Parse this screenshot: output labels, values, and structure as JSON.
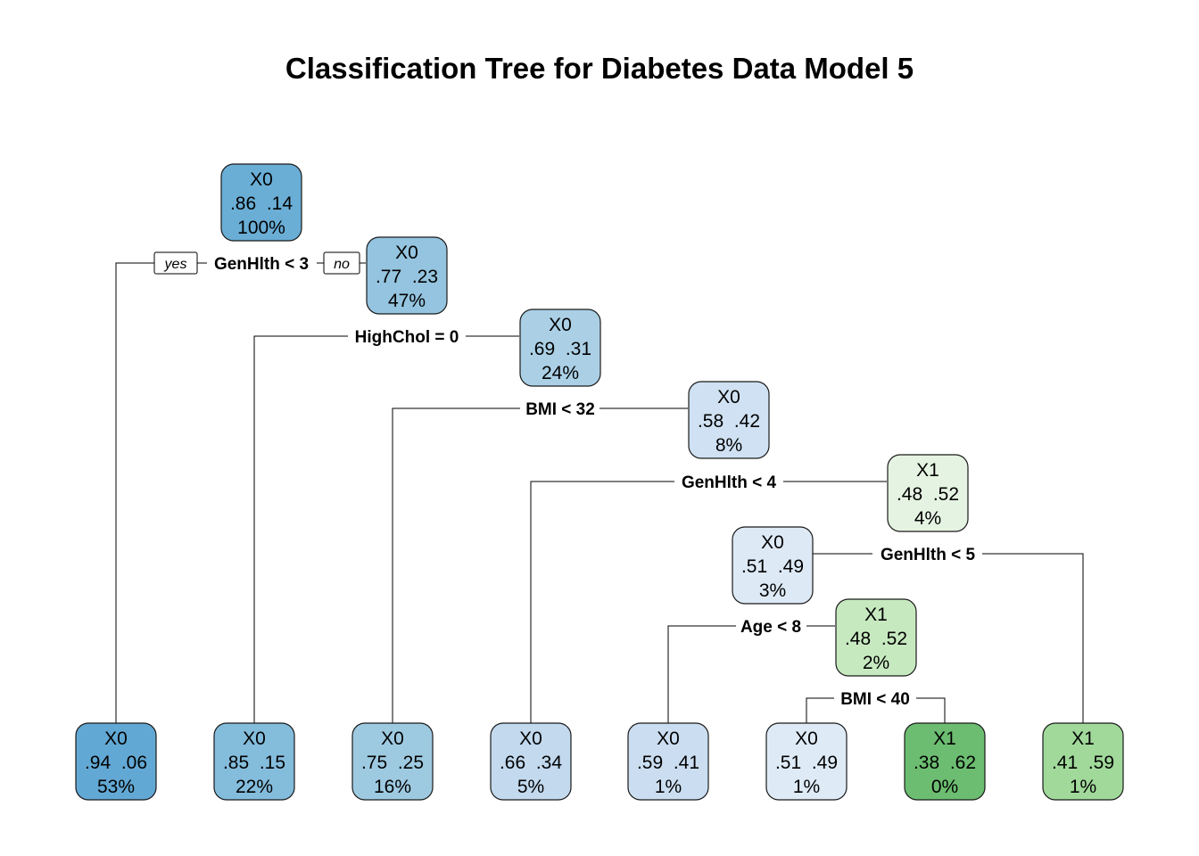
{
  "title": "Classification Tree for Diabetes Data Model 5",
  "colors": {
    "n100": "#6aaed6",
    "n47": "#94c4df",
    "n24": "#abd0e6",
    "n8": "#cfe1f2",
    "n4": "#e5f4e2",
    "n3": "#dde9f5",
    "n2": "#c7e9c0",
    "l53": "#62a8d4",
    "l22": "#84bcdc",
    "l16": "#9ecae1",
    "l5": "#c2d9ee",
    "l1a": "#cbdef1",
    "l1b": "#deebf7",
    "l0": "#6cbd71",
    "l1c": "#a1d99b"
  },
  "edge_labels": {
    "yes": "yes",
    "no": "no"
  },
  "nodes": [
    {
      "id": "n100",
      "cls": "X0",
      "probs": ".86  .14",
      "pct": "100%"
    },
    {
      "id": "n47",
      "cls": "X0",
      "probs": ".77  .23",
      "pct": "47%"
    },
    {
      "id": "n24",
      "cls": "X0",
      "probs": ".69  .31",
      "pct": "24%"
    },
    {
      "id": "n8",
      "cls": "X0",
      "probs": ".58  .42",
      "pct": "8%"
    },
    {
      "id": "n4",
      "cls": "X1",
      "probs": ".48  .52",
      "pct": "4%"
    },
    {
      "id": "n3",
      "cls": "X0",
      "probs": ".51  .49",
      "pct": "3%"
    },
    {
      "id": "n2",
      "cls": "X1",
      "probs": ".48  .52",
      "pct": "2%"
    },
    {
      "id": "l53",
      "cls": "X0",
      "probs": ".94  .06",
      "pct": "53%"
    },
    {
      "id": "l22",
      "cls": "X0",
      "probs": ".85  .15",
      "pct": "22%"
    },
    {
      "id": "l16",
      "cls": "X0",
      "probs": ".75  .25",
      "pct": "16%"
    },
    {
      "id": "l5",
      "cls": "X0",
      "probs": ".66  .34",
      "pct": "5%"
    },
    {
      "id": "l1a",
      "cls": "X0",
      "probs": ".59  .41",
      "pct": "1%"
    },
    {
      "id": "l1b",
      "cls": "X0",
      "probs": ".51  .49",
      "pct": "1%"
    },
    {
      "id": "l0",
      "cls": "X1",
      "probs": ".38  .62",
      "pct": "0%"
    },
    {
      "id": "l1c",
      "cls": "X1",
      "probs": ".41  .59",
      "pct": "1%"
    }
  ],
  "splits": [
    {
      "id": "s1",
      "text": "GenHlth < 3"
    },
    {
      "id": "s2",
      "text": "HighChol = 0"
    },
    {
      "id": "s3",
      "text": "BMI < 32"
    },
    {
      "id": "s4",
      "text": "GenHlth < 4"
    },
    {
      "id": "s5",
      "text": "GenHlth < 5"
    },
    {
      "id": "s6",
      "text": "Age < 8"
    },
    {
      "id": "s7",
      "text": "BMI < 40"
    }
  ]
}
